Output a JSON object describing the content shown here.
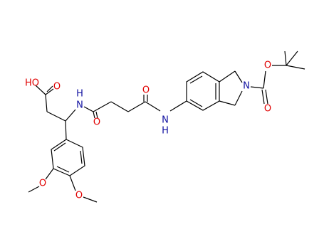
{
  "atoms": [
    {
      "label": "HO"
    },
    {
      "label": "O"
    },
    {
      "label": "H"
    },
    {
      "label": "N"
    },
    {
      "label": "O"
    },
    {
      "label": "O"
    },
    {
      "label": "N"
    },
    {
      "label": "H"
    },
    {
      "label": "N"
    },
    {
      "label": "O"
    },
    {
      "label": "O"
    },
    {
      "label": "O"
    },
    {
      "label": "O"
    }
  ]
}
